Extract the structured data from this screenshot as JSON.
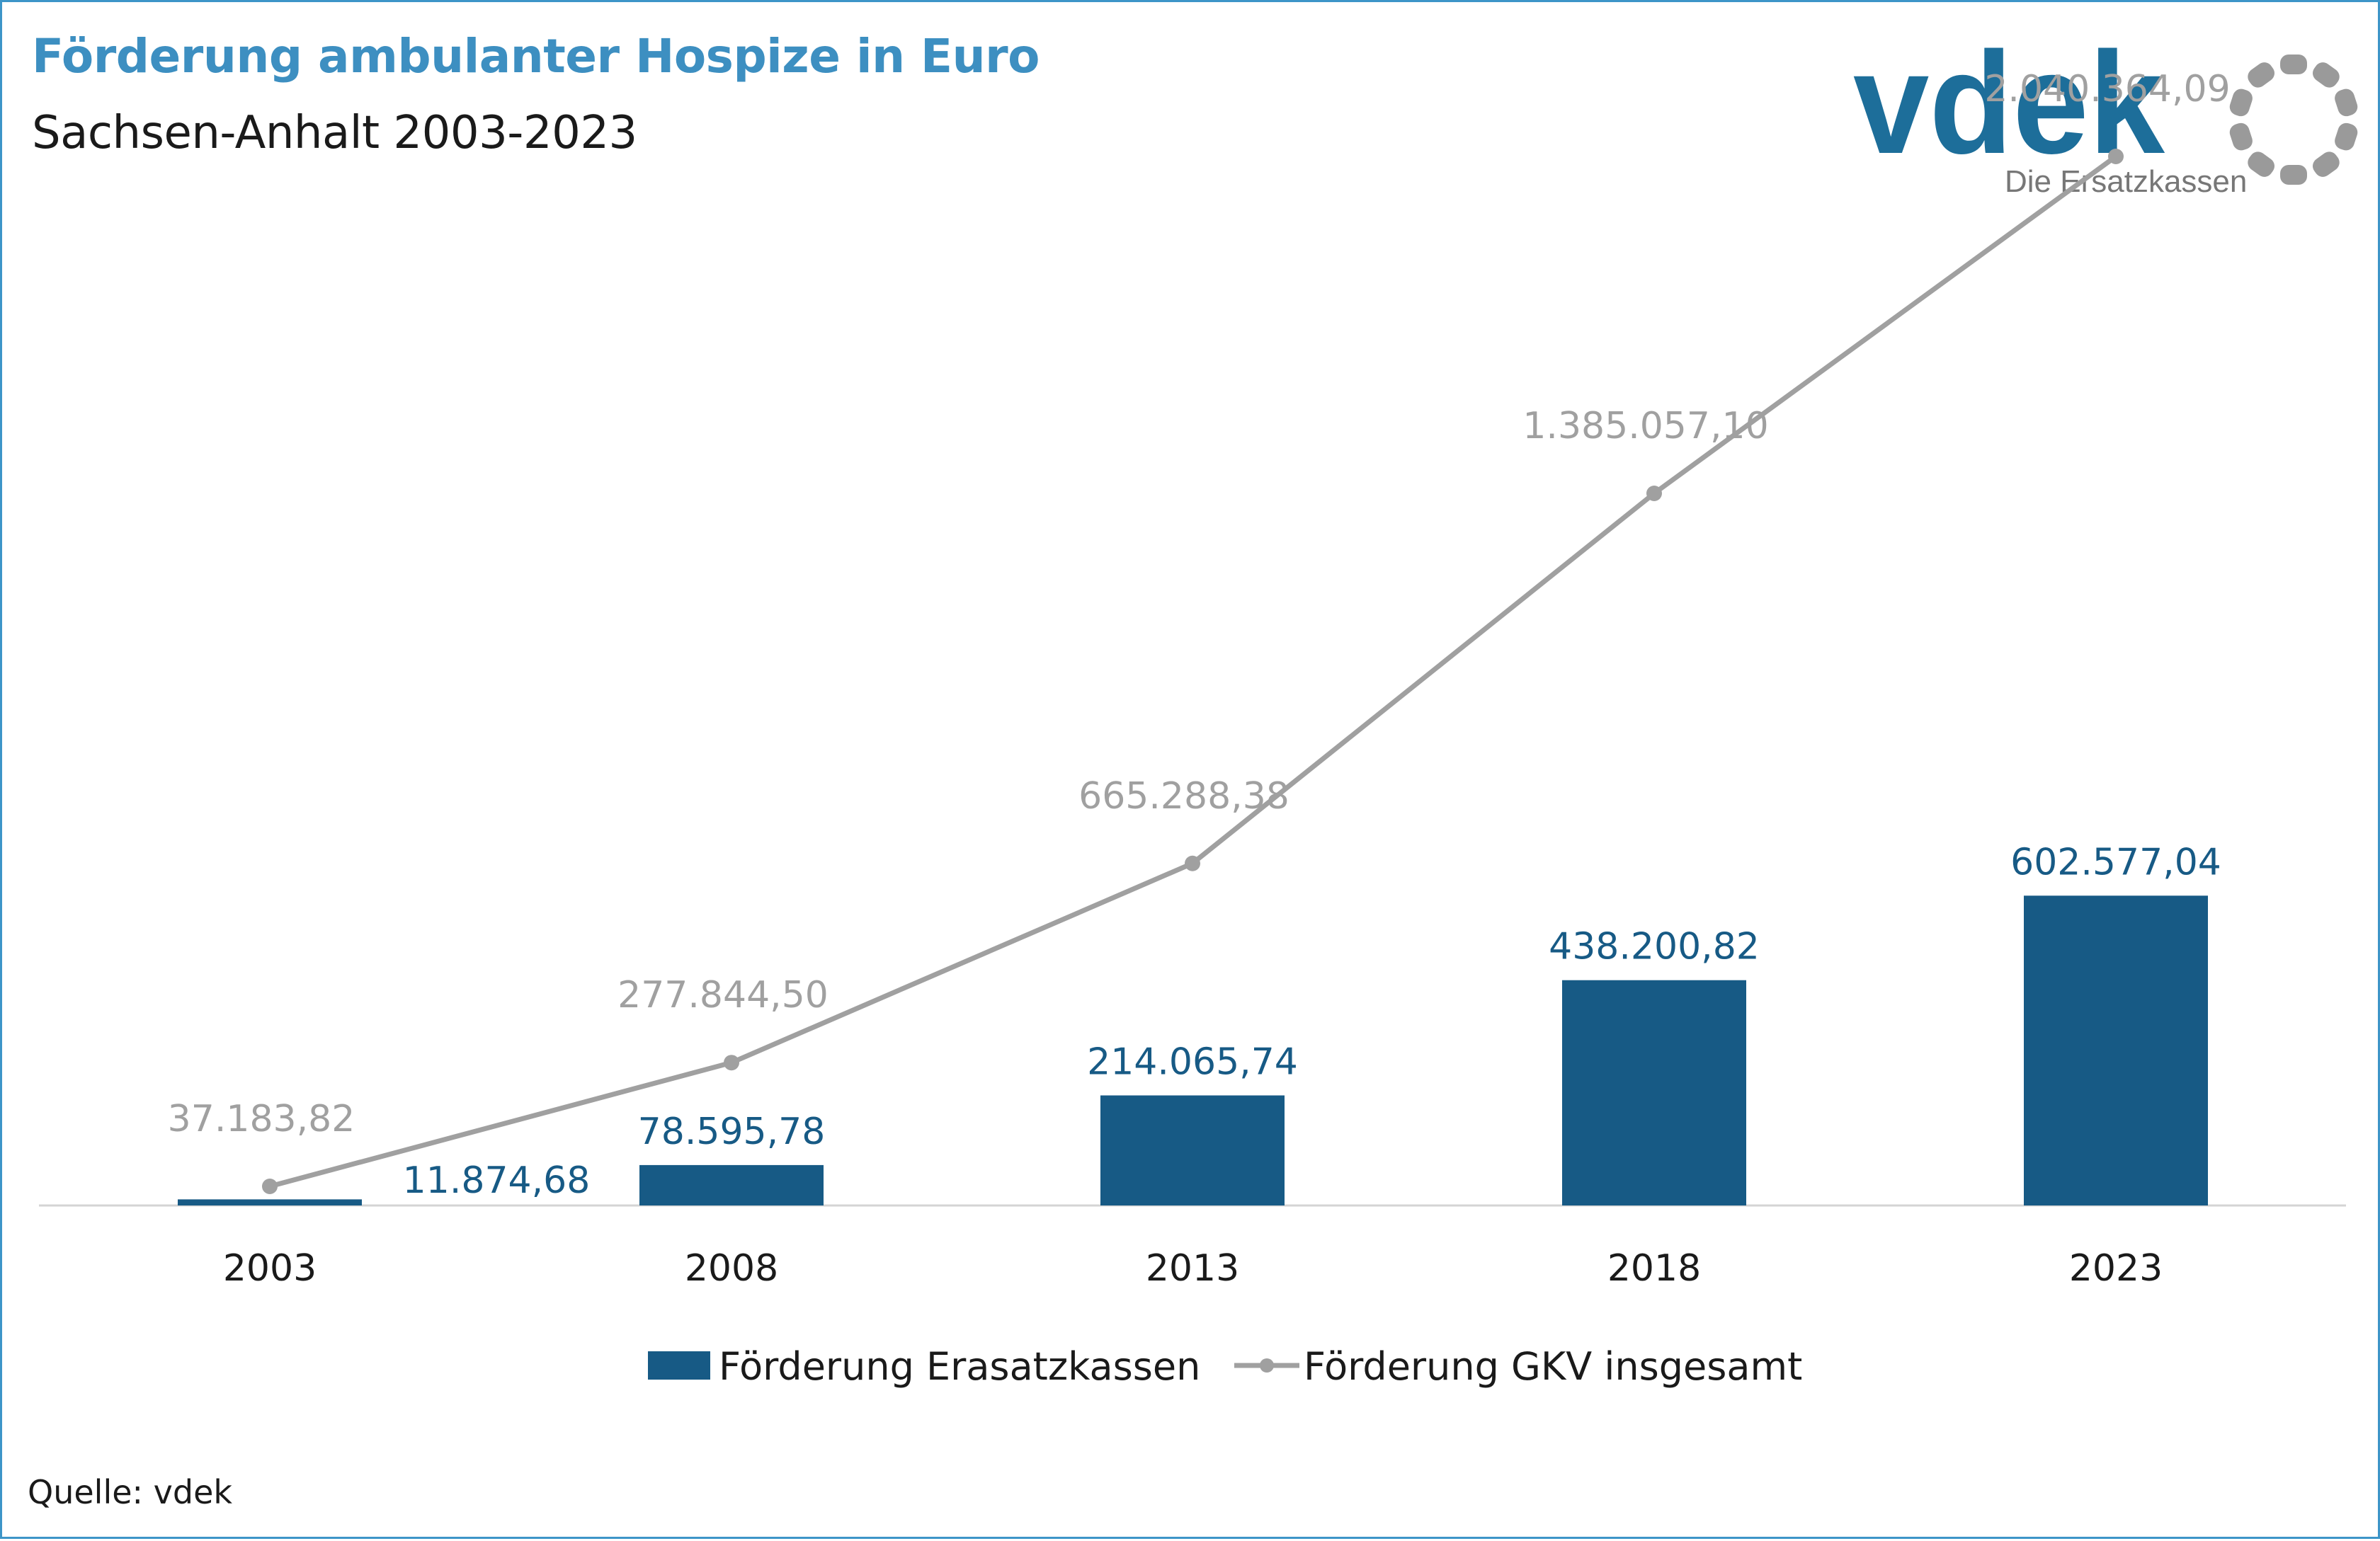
{
  "header": {
    "title": "Förderung ambulanter Hospize in Euro",
    "subtitle": "Sachsen-Anhalt 2003-2023"
  },
  "logo": {
    "wordmark": "vdek",
    "tagline": "Die Ersatzkassen",
    "wordmark_color": "#1d6e9a",
    "mark_color": "#9a9a9a"
  },
  "source": "Quelle: vdek",
  "chart_data": {
    "type": "bar",
    "categories": [
      "2003",
      "2008",
      "2013",
      "2018",
      "2023"
    ],
    "series": [
      {
        "name": "Förderung Erasatzkassen",
        "type": "bar",
        "color": "#175a85",
        "values": [
          11874.68,
          78595.78,
          214065.74,
          438200.82,
          602577.04
        ],
        "labels": [
          "11.874,68",
          "78.595,78",
          "214.065,74",
          "438.200,82",
          "602.577,04"
        ]
      },
      {
        "name": "Förderung GKV insgesamt",
        "type": "line",
        "color": "#a0a0a0",
        "values": [
          37183.82,
          277844.5,
          665288.38,
          1385057.1,
          2040364.09
        ],
        "labels": [
          "37.183,82",
          "277.844,50",
          "665.288,38",
          "1.385.057,10",
          "2.040.364,09"
        ]
      }
    ],
    "ylim": [
      0,
      2200000
    ],
    "grid": false,
    "legend_position": "bottom"
  }
}
